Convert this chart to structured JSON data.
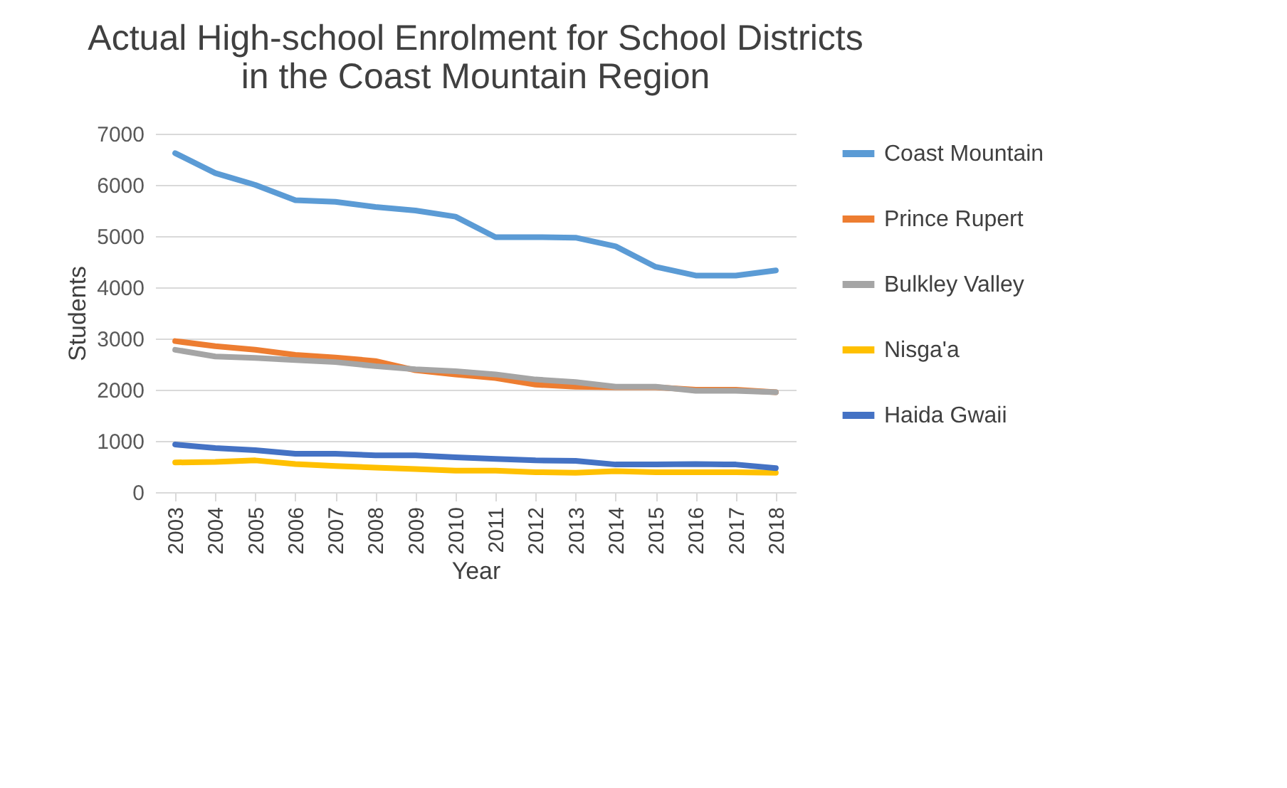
{
  "chart_data": {
    "type": "line",
    "title": "Actual High-school Enrolment for School Districts\nin the Coast Mountain Region",
    "xlabel": "Year",
    "ylabel": "Students",
    "categories": [
      "2003",
      "2004",
      "2005",
      "2006",
      "2007",
      "2008",
      "2009",
      "2010",
      "2011",
      "2012",
      "2013",
      "2014",
      "2015",
      "2016",
      "2017",
      "2018"
    ],
    "series": [
      {
        "name": "Coast Mountain",
        "color": "#5b9bd5",
        "values": [
          6620,
          6230,
          6000,
          5700,
          5670,
          5570,
          5500,
          5380,
          4980,
          4980,
          4970,
          4800,
          4400,
          4230,
          4230,
          4330
        ]
      },
      {
        "name": "Prince Rupert",
        "color": "#ed7d31",
        "values": [
          2950,
          2850,
          2780,
          2680,
          2630,
          2560,
          2380,
          2300,
          2230,
          2100,
          2060,
          2050,
          2050,
          2000,
          2000,
          1950
        ]
      },
      {
        "name": "Bulkley Valley",
        "color": "#a5a5a5",
        "values": [
          2780,
          2650,
          2620,
          2580,
          2540,
          2460,
          2400,
          2360,
          2300,
          2200,
          2150,
          2060,
          2060,
          1980,
          1980,
          1950
        ]
      },
      {
        "name": "Nisga'a",
        "color": "#ffc000",
        "values": [
          580,
          590,
          620,
          550,
          510,
          480,
          450,
          420,
          420,
          390,
          380,
          410,
          390,
          390,
          390,
          380
        ]
      },
      {
        "name": "Haida Gwaii",
        "color": "#4472c4",
        "values": [
          930,
          860,
          820,
          750,
          750,
          720,
          720,
          680,
          650,
          620,
          610,
          540,
          540,
          550,
          540,
          470
        ]
      }
    ],
    "ylim": [
      0,
      7000
    ],
    "yticks": [
      0,
      1000,
      2000,
      3000,
      4000,
      5000,
      6000,
      7000
    ],
    "grid": "y",
    "legend": "right",
    "marker": "none",
    "line_style": "solid"
  }
}
